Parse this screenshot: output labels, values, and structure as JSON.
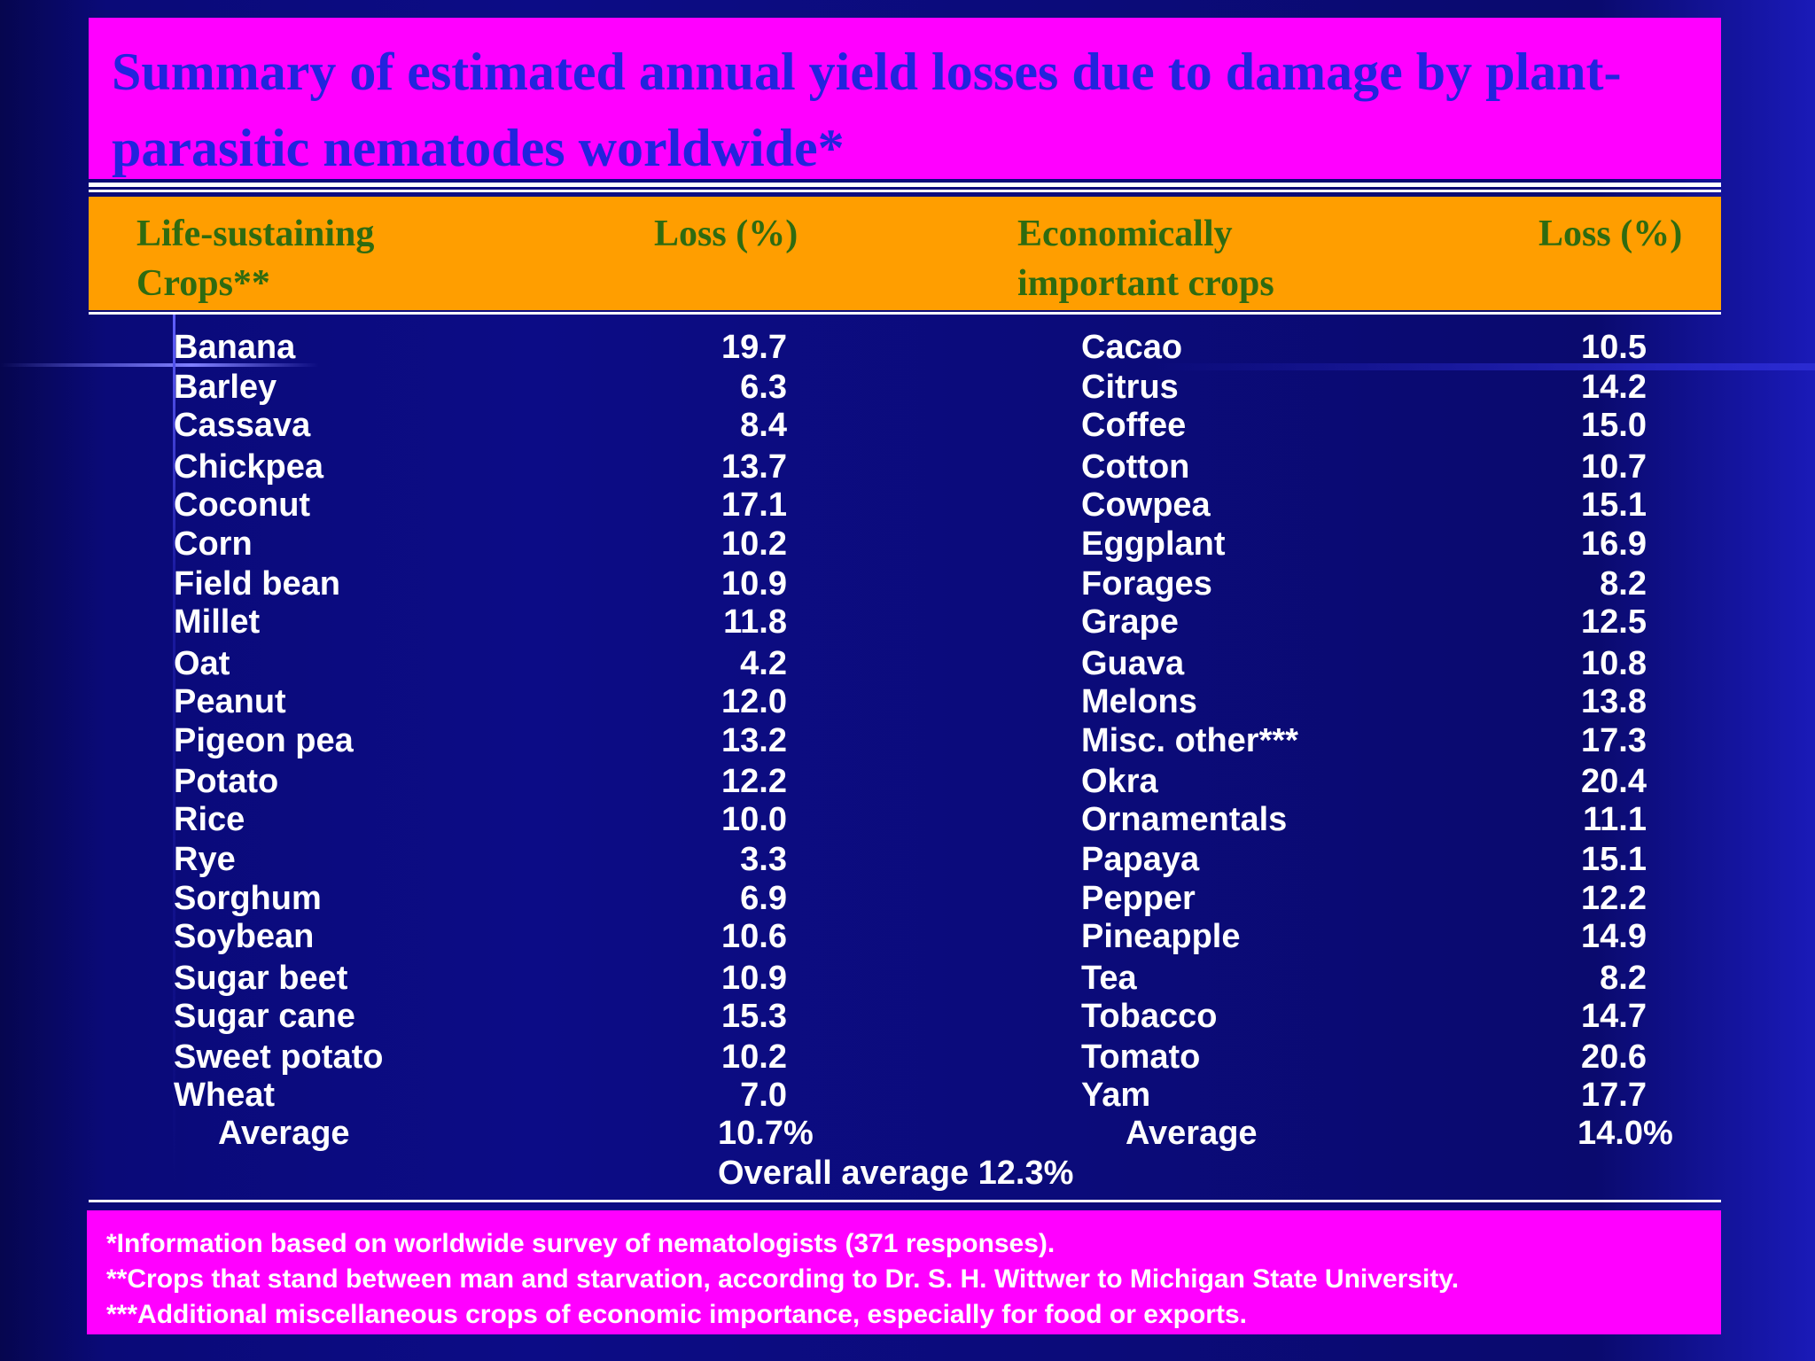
{
  "title": "Summary of estimated  annual yield losses due to damage  by plant-parasitic nematodes worldwide*",
  "headers": {
    "col1_line1": "Life-sustaining",
    "col1_line2": "Crops**",
    "col2": "Loss (%)",
    "col3_line1": "Economically",
    "col3_line2": "important crops",
    "col4": "Loss (%)"
  },
  "rows": [
    {
      "crop_a": "Banana",
      "loss_a": "19.7",
      "crop_b": "Cacao",
      "loss_b": "10.5"
    },
    {
      "crop_a": "Barley",
      "loss_a": "6.3",
      "crop_b": "Citrus",
      "loss_b": "14.2"
    },
    {
      "crop_a": "Cassava",
      "loss_a": "8.4",
      "crop_b": "Coffee",
      "loss_b": "15.0"
    },
    {
      "crop_a": "Chickpea",
      "loss_a": "13.7",
      "crop_b": "Cotton",
      "loss_b": "10.7"
    },
    {
      "crop_a": "Coconut",
      "loss_a": "17.1",
      "crop_b": "Cowpea",
      "loss_b": "15.1"
    },
    {
      "crop_a": "Corn",
      "loss_a": "10.2",
      "crop_b": "Eggplant",
      "loss_b": "16.9"
    },
    {
      "crop_a": "Field bean",
      "loss_a": "10.9",
      "crop_b": "Forages",
      "loss_b": "8.2"
    },
    {
      "crop_a": "Millet",
      "loss_a": "11.8",
      "crop_b": "Grape",
      "loss_b": "12.5"
    },
    {
      "crop_a": "Oat",
      "loss_a": "4.2",
      "crop_b": "Guava",
      "loss_b": "10.8"
    },
    {
      "crop_a": "Peanut",
      "loss_a": "12.0",
      "crop_b": "Melons",
      "loss_b": "13.8"
    },
    {
      "crop_a": "Pigeon pea",
      "loss_a": "13.2",
      "crop_b": "Misc. other***",
      "loss_b": "17.3"
    },
    {
      "crop_a": "Potato",
      "loss_a": "12.2",
      "crop_b": "Okra",
      "loss_b": "20.4"
    },
    {
      "crop_a": "Rice",
      "loss_a": "10.0",
      "crop_b": "Ornamentals",
      "loss_b": "11.1"
    },
    {
      "crop_a": "Rye",
      "loss_a": "3.3",
      "crop_b": "Papaya",
      "loss_b": "15.1"
    },
    {
      "crop_a": "Sorghum",
      "loss_a": "6.9",
      "crop_b": "Pepper",
      "loss_b": "12.2"
    },
    {
      "crop_a": "Soybean",
      "loss_a": "10.6",
      "crop_b": "Pineapple",
      "loss_b": "14.9"
    },
    {
      "crop_a": "Sugar beet",
      "loss_a": "10.9",
      "crop_b": "Tea",
      "loss_b": "8.2"
    },
    {
      "crop_a": "Sugar cane",
      "loss_a": "15.3",
      "crop_b": "Tobacco",
      "loss_b": "14.7"
    },
    {
      "crop_a": "Sweet potato",
      "loss_a": "10.2",
      "crop_b": "Tomato",
      "loss_b": "20.6"
    },
    {
      "crop_a": "Wheat",
      "loss_a": "7.0",
      "crop_b": "Yam",
      "loss_b": "17.7"
    }
  ],
  "averages": {
    "label_a": "Average",
    "value_a": "10.7%",
    "label_b": "Average",
    "value_b": "14.0%"
  },
  "overall": "Overall average 12.3%",
  "footnotes": [
    "*Information based  on worldwide survey  of nematologists  (371 responses).",
    "**Crops that stand between man  and starvation,  according  to Dr. S. H. Wittwer to Michigan  State University.",
    "***Additional miscellaneous  crops of economic  importance, especially  for food or exports."
  ],
  "colors": {
    "background": "#0a0a6e",
    "title_band": "#ff00ff",
    "title_text": "#2323dd",
    "header_band": "#ff9e00",
    "header_text": "#2f6b10",
    "body_text": "#ffffff"
  }
}
